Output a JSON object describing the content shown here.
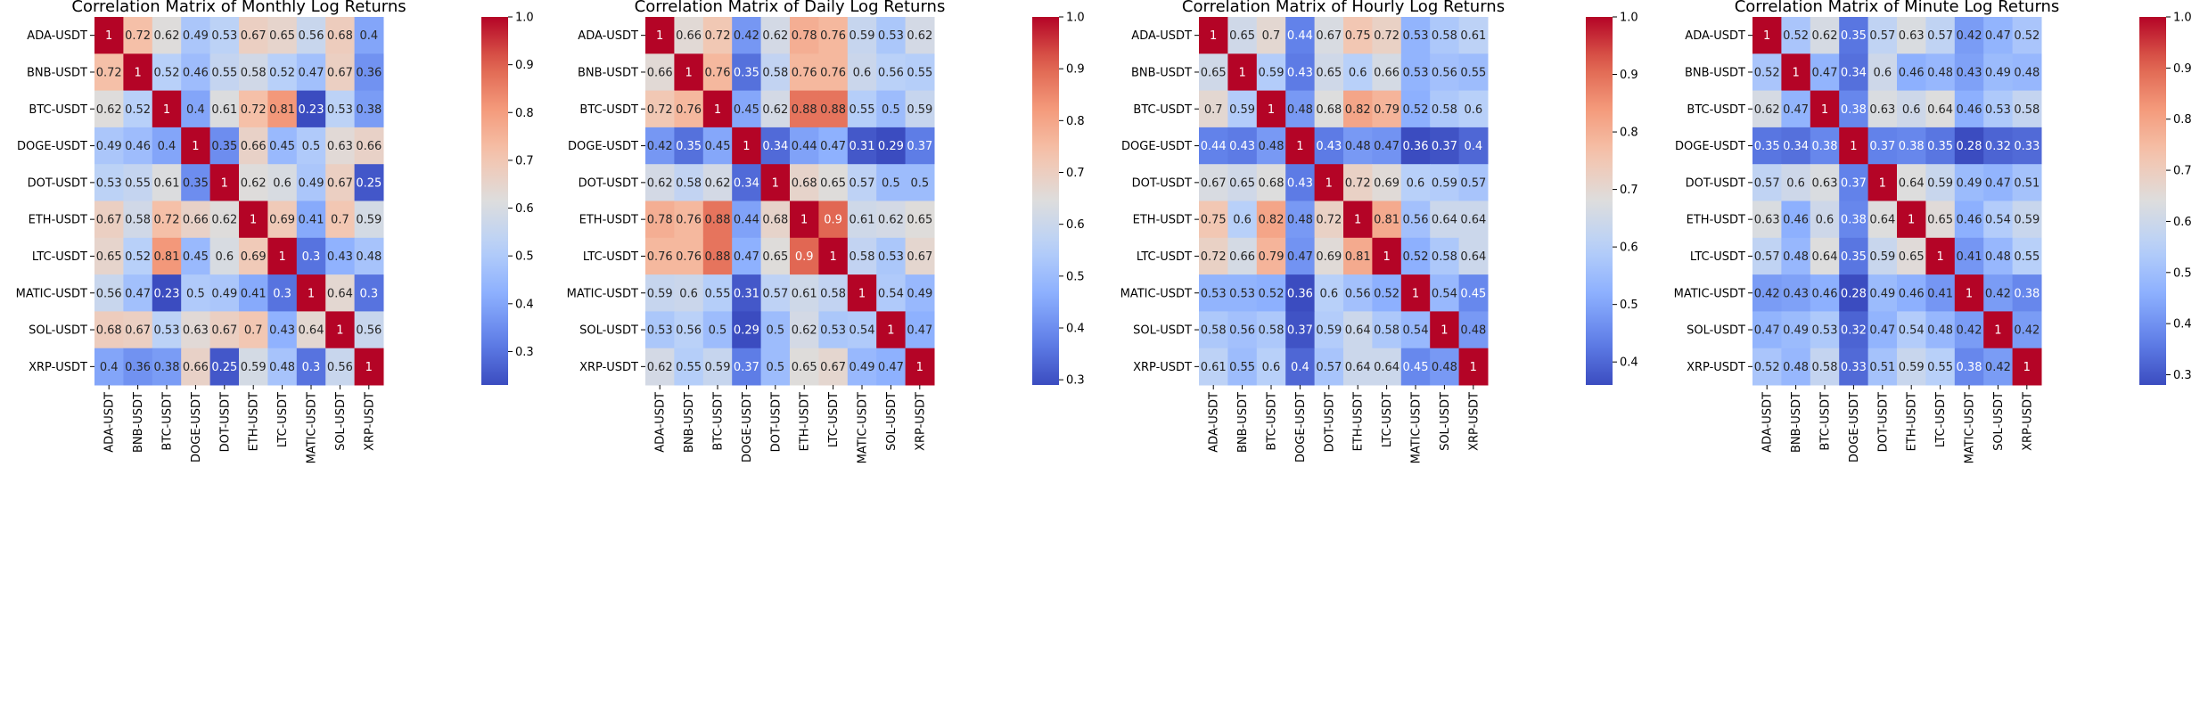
{
  "chart_data": [
    {
      "type": "heatmap",
      "title": "Correlation Matrix of Monthly Log Returns",
      "x_labels": [
        "ADA-USDT",
        "BNB-USDT",
        "BTC-USDT",
        "DOGE-USDT",
        "DOT-USDT",
        "ETH-USDT",
        "LTC-USDT",
        "MATIC-USDT",
        "SOL-USDT",
        "XRP-USDT"
      ],
      "y_labels": [
        "ADA-USDT",
        "BNB-USDT",
        "BTC-USDT",
        "DOGE-USDT",
        "DOT-USDT",
        "ETH-USDT",
        "LTC-USDT",
        "MATIC-USDT",
        "SOL-USDT",
        "XRP-USDT"
      ],
      "values": [
        [
          1,
          0.72,
          0.62,
          0.49,
          0.53,
          0.67,
          0.65,
          0.56,
          0.68,
          0.4
        ],
        [
          0.72,
          1,
          0.52,
          0.46,
          0.55,
          0.58,
          0.52,
          0.47,
          0.67,
          0.36
        ],
        [
          0.62,
          0.52,
          1,
          0.4,
          0.61,
          0.72,
          0.81,
          0.23,
          0.53,
          0.38
        ],
        [
          0.49,
          0.46,
          0.4,
          1,
          0.35,
          0.66,
          0.45,
          0.5,
          0.63,
          0.66
        ],
        [
          0.53,
          0.55,
          0.61,
          0.35,
          1,
          0.62,
          0.6,
          0.49,
          0.67,
          0.25
        ],
        [
          0.67,
          0.58,
          0.72,
          0.66,
          0.62,
          1,
          0.69,
          0.41,
          0.7,
          0.59
        ],
        [
          0.65,
          0.52,
          0.81,
          0.45,
          0.6,
          0.69,
          1,
          0.3,
          0.43,
          0.48
        ],
        [
          0.56,
          0.47,
          0.23,
          0.5,
          0.49,
          0.41,
          0.3,
          1,
          0.64,
          0.3
        ],
        [
          0.68,
          0.67,
          0.53,
          0.63,
          0.67,
          0.7,
          0.43,
          0.64,
          1,
          0.56
        ],
        [
          0.4,
          0.36,
          0.38,
          0.66,
          0.25,
          0.59,
          0.48,
          0.3,
          0.56,
          1
        ]
      ],
      "colormap": "coolwarm",
      "vmin": 0.23,
      "vmax": 1.0,
      "colorbar_ticks": [
        0.3,
        0.4,
        0.5,
        0.6,
        0.7,
        0.8,
        0.9,
        1.0
      ],
      "colorbar_tick_labels": [
        "0.3",
        "0.4",
        "0.5",
        "0.6",
        "0.7",
        "0.8",
        "0.9",
        "1.0"
      ]
    },
    {
      "type": "heatmap",
      "title": "Correlation Matrix of Daily Log Returns",
      "x_labels": [
        "ADA-USDT",
        "BNB-USDT",
        "BTC-USDT",
        "DOGE-USDT",
        "DOT-USDT",
        "ETH-USDT",
        "LTC-USDT",
        "MATIC-USDT",
        "SOL-USDT",
        "XRP-USDT"
      ],
      "y_labels": [
        "ADA-USDT",
        "BNB-USDT",
        "BTC-USDT",
        "DOGE-USDT",
        "DOT-USDT",
        "ETH-USDT",
        "LTC-USDT",
        "MATIC-USDT",
        "SOL-USDT",
        "XRP-USDT"
      ],
      "values": [
        [
          1,
          0.66,
          0.72,
          0.42,
          0.62,
          0.78,
          0.76,
          0.59,
          0.53,
          0.62
        ],
        [
          0.66,
          1,
          0.76,
          0.35,
          0.58,
          0.76,
          0.76,
          0.6,
          0.56,
          0.55
        ],
        [
          0.72,
          0.76,
          1,
          0.45,
          0.62,
          0.88,
          0.88,
          0.55,
          0.5,
          0.59
        ],
        [
          0.42,
          0.35,
          0.45,
          1,
          0.34,
          0.44,
          0.47,
          0.31,
          0.29,
          0.37
        ],
        [
          0.62,
          0.58,
          0.62,
          0.34,
          1,
          0.68,
          0.65,
          0.57,
          0.5,
          0.5
        ],
        [
          0.78,
          0.76,
          0.88,
          0.44,
          0.68,
          1,
          0.9,
          0.61,
          0.62,
          0.65
        ],
        [
          0.76,
          0.76,
          0.88,
          0.47,
          0.65,
          0.9,
          1,
          0.58,
          0.53,
          0.67
        ],
        [
          0.59,
          0.6,
          0.55,
          0.31,
          0.57,
          0.61,
          0.58,
          1,
          0.54,
          0.49
        ],
        [
          0.53,
          0.56,
          0.5,
          0.29,
          0.5,
          0.62,
          0.53,
          0.54,
          1,
          0.47
        ],
        [
          0.62,
          0.55,
          0.59,
          0.37,
          0.5,
          0.65,
          0.67,
          0.49,
          0.47,
          1
        ]
      ],
      "colormap": "coolwarm",
      "vmin": 0.29,
      "vmax": 1.0,
      "colorbar_ticks": [
        0.3,
        0.4,
        0.5,
        0.6,
        0.7,
        0.8,
        0.9,
        1.0
      ],
      "colorbar_tick_labels": [
        "0.3",
        "0.4",
        "0.5",
        "0.6",
        "0.7",
        "0.8",
        "0.9",
        "1.0"
      ]
    },
    {
      "type": "heatmap",
      "title": "Correlation Matrix of Hourly Log Returns",
      "x_labels": [
        "ADA-USDT",
        "BNB-USDT",
        "BTC-USDT",
        "DOGE-USDT",
        "DOT-USDT",
        "ETH-USDT",
        "LTC-USDT",
        "MATIC-USDT",
        "SOL-USDT",
        "XRP-USDT"
      ],
      "y_labels": [
        "ADA-USDT",
        "BNB-USDT",
        "BTC-USDT",
        "DOGE-USDT",
        "DOT-USDT",
        "ETH-USDT",
        "LTC-USDT",
        "MATIC-USDT",
        "SOL-USDT",
        "XRP-USDT"
      ],
      "values": [
        [
          1,
          0.65,
          0.7,
          0.44,
          0.67,
          0.75,
          0.72,
          0.53,
          0.58,
          0.61
        ],
        [
          0.65,
          1,
          0.59,
          0.43,
          0.65,
          0.6,
          0.66,
          0.53,
          0.56,
          0.55
        ],
        [
          0.7,
          0.59,
          1,
          0.48,
          0.68,
          0.82,
          0.79,
          0.52,
          0.58,
          0.6
        ],
        [
          0.44,
          0.43,
          0.48,
          1,
          0.43,
          0.48,
          0.47,
          0.36,
          0.37,
          0.4
        ],
        [
          0.67,
          0.65,
          0.68,
          0.43,
          1,
          0.72,
          0.69,
          0.6,
          0.59,
          0.57
        ],
        [
          0.75,
          0.6,
          0.82,
          0.48,
          0.72,
          1,
          0.81,
          0.56,
          0.64,
          0.64
        ],
        [
          0.72,
          0.66,
          0.79,
          0.47,
          0.69,
          0.81,
          1,
          0.52,
          0.58,
          0.64
        ],
        [
          0.53,
          0.53,
          0.52,
          0.36,
          0.6,
          0.56,
          0.52,
          1,
          0.54,
          0.45
        ],
        [
          0.58,
          0.56,
          0.58,
          0.37,
          0.59,
          0.64,
          0.58,
          0.54,
          1,
          0.48
        ],
        [
          0.61,
          0.55,
          0.6,
          0.4,
          0.57,
          0.64,
          0.64,
          0.45,
          0.48,
          1
        ]
      ],
      "colormap": "coolwarm",
      "vmin": 0.36,
      "vmax": 1.0,
      "colorbar_ticks": [
        0.4,
        0.5,
        0.6,
        0.7,
        0.8,
        0.9,
        1.0
      ],
      "colorbar_tick_labels": [
        "0.4",
        "0.5",
        "0.6",
        "0.7",
        "0.8",
        "0.9",
        "1.0"
      ]
    },
    {
      "type": "heatmap",
      "title": "Correlation Matrix of Minute Log Returns",
      "x_labels": [
        "ADA-USDT",
        "BNB-USDT",
        "BTC-USDT",
        "DOGE-USDT",
        "DOT-USDT",
        "ETH-USDT",
        "LTC-USDT",
        "MATIC-USDT",
        "SOL-USDT",
        "XRP-USDT"
      ],
      "y_labels": [
        "ADA-USDT",
        "BNB-USDT",
        "BTC-USDT",
        "DOGE-USDT",
        "DOT-USDT",
        "ETH-USDT",
        "LTC-USDT",
        "MATIC-USDT",
        "SOL-USDT",
        "XRP-USDT"
      ],
      "values": [
        [
          1,
          0.52,
          0.62,
          0.35,
          0.57,
          0.63,
          0.57,
          0.42,
          0.47,
          0.52
        ],
        [
          0.52,
          1,
          0.47,
          0.34,
          0.6,
          0.46,
          0.48,
          0.43,
          0.49,
          0.48
        ],
        [
          0.62,
          0.47,
          1,
          0.38,
          0.63,
          0.6,
          0.64,
          0.46,
          0.53,
          0.58
        ],
        [
          0.35,
          0.34,
          0.38,
          1,
          0.37,
          0.38,
          0.35,
          0.28,
          0.32,
          0.33
        ],
        [
          0.57,
          0.6,
          0.63,
          0.37,
          1,
          0.64,
          0.59,
          0.49,
          0.47,
          0.51
        ],
        [
          0.63,
          0.46,
          0.6,
          0.38,
          0.64,
          1,
          0.65,
          0.46,
          0.54,
          0.59
        ],
        [
          0.57,
          0.48,
          0.64,
          0.35,
          0.59,
          0.65,
          1,
          0.41,
          0.48,
          0.55
        ],
        [
          0.42,
          0.43,
          0.46,
          0.28,
          0.49,
          0.46,
          0.41,
          1,
          0.42,
          0.38
        ],
        [
          0.47,
          0.49,
          0.53,
          0.32,
          0.47,
          0.54,
          0.48,
          0.42,
          1,
          0.42
        ],
        [
          0.52,
          0.48,
          0.58,
          0.33,
          0.51,
          0.59,
          0.55,
          0.38,
          0.42,
          1
        ]
      ],
      "colormap": "coolwarm",
      "vmin": 0.28,
      "vmax": 1.0,
      "colorbar_ticks": [
        0.3,
        0.4,
        0.5,
        0.6,
        0.7,
        0.8,
        0.9,
        1.0
      ],
      "colorbar_tick_labels": [
        "0.3",
        "0.4",
        "0.5",
        "0.6",
        "0.7",
        "0.8",
        "0.9",
        "1.0"
      ]
    }
  ]
}
